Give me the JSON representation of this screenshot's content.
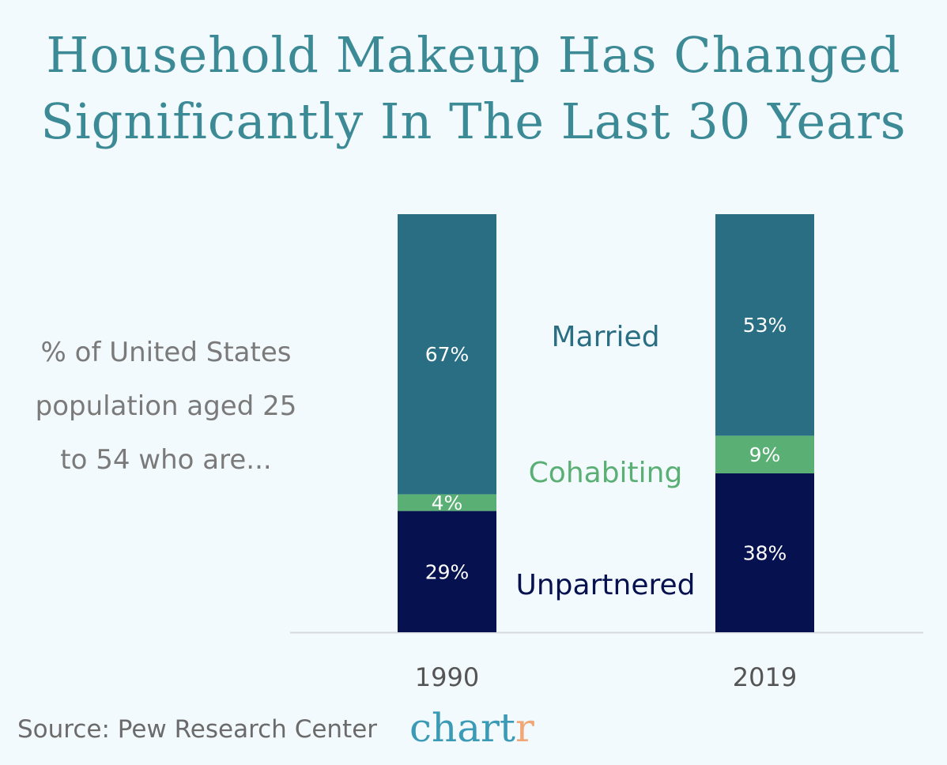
{
  "chart_data": {
    "type": "bar",
    "stacked": true,
    "title": "Household Makeup Has Changed Significantly In The Last 30 Years",
    "ylabel": "% of United States population aged 25 to 54 who are...",
    "categories": [
      "1990",
      "2019"
    ],
    "series": [
      {
        "name": "Unpartnered",
        "values": [
          29,
          38
        ],
        "labels": [
          "29%",
          "38%"
        ],
        "color": "#061250"
      },
      {
        "name": "Cohabiting",
        "values": [
          4,
          9
        ],
        "labels": [
          "4%",
          "9%"
        ],
        "color": "#5aaf74"
      },
      {
        "name": "Married",
        "values": [
          67,
          53
        ],
        "labels": [
          "67%",
          "53%"
        ],
        "color": "#2a6e83"
      }
    ],
    "ylim": [
      0,
      100
    ],
    "grid": false,
    "legend": "center between bars"
  },
  "source": "Source: Pew Research Center",
  "logo": {
    "main": "chart",
    "accent": "r"
  }
}
